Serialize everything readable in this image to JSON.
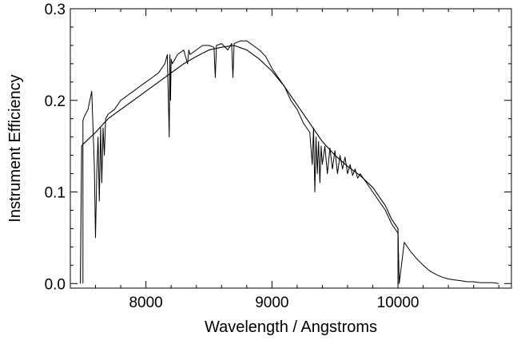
{
  "chart_data": {
    "type": "line",
    "title": "",
    "xlabel": "Wavelength / Angstroms",
    "ylabel": "Instrument Efficiency",
    "xlim": [
      7400,
      10900
    ],
    "ylim": [
      -0.005,
      0.3
    ],
    "grid": false,
    "x_ticks": [
      8000,
      9000,
      10000
    ],
    "x_tick_labels": [
      "8000",
      "9000",
      "10000"
    ],
    "y_ticks": [
      0.0,
      0.1,
      0.2,
      0.3
    ],
    "y_tick_labels": [
      "0.0",
      "0.1",
      "0.2",
      "0.3"
    ],
    "series": [
      {
        "style": "measured",
        "x": [
          7500,
          7500,
          7510,
          7540,
          7570,
          7580,
          7590,
          7600,
          7610,
          7620,
          7630,
          7640,
          7650,
          7660,
          7670,
          7680,
          7700,
          7750,
          7800,
          7850,
          7900,
          7950,
          8000,
          8050,
          8100,
          8150,
          8170,
          8180,
          8185,
          8190,
          8195,
          8200,
          8210,
          8250,
          8300,
          8330,
          8340,
          8350,
          8400,
          8450,
          8500,
          8540,
          8550,
          8560,
          8600,
          8650,
          8680,
          8690,
          8700,
          8750,
          8800,
          8850,
          8900,
          8950,
          9000,
          9050,
          9100,
          9150,
          9200,
          9250,
          9300,
          9320,
          9330,
          9340,
          9350,
          9360,
          9370,
          9380,
          9390,
          9400,
          9420,
          9440,
          9460,
          9480,
          9500,
          9520,
          9540,
          9560,
          9580,
          9600,
          9620,
          9640,
          9660,
          9680,
          9700,
          9750,
          9800,
          9850,
          9900,
          9950,
          10000,
          10010,
          10050,
          10100,
          10150,
          10200,
          10250,
          10300,
          10350,
          10400,
          10450,
          10500,
          10550,
          10600,
          10650,
          10700,
          10750,
          10800
        ],
        "y": [
          0.0,
          0.178,
          0.182,
          0.19,
          0.21,
          0.17,
          0.13,
          0.05,
          0.12,
          0.16,
          0.09,
          0.17,
          0.11,
          0.17,
          0.14,
          0.18,
          0.185,
          0.19,
          0.2,
          0.205,
          0.21,
          0.215,
          0.22,
          0.225,
          0.23,
          0.24,
          0.25,
          0.19,
          0.16,
          0.25,
          0.2,
          0.245,
          0.24,
          0.25,
          0.255,
          0.24,
          0.255,
          0.25,
          0.255,
          0.26,
          0.26,
          0.258,
          0.225,
          0.26,
          0.262,
          0.255,
          0.262,
          0.225,
          0.262,
          0.265,
          0.265,
          0.26,
          0.255,
          0.248,
          0.235,
          0.225,
          0.215,
          0.2,
          0.19,
          0.175,
          0.165,
          0.13,
          0.17,
          0.1,
          0.16,
          0.12,
          0.155,
          0.11,
          0.15,
          0.13,
          0.15,
          0.12,
          0.148,
          0.125,
          0.145,
          0.12,
          0.14,
          0.125,
          0.138,
          0.12,
          0.13,
          0.118,
          0.125,
          0.115,
          0.12,
          0.11,
          0.1,
          0.09,
          0.08,
          0.065,
          0.055,
          0.0,
          0.045,
          0.035,
          0.027,
          0.02,
          0.014,
          0.01,
          0.007,
          0.005,
          0.004,
          0.003,
          0.002,
          0.002,
          0.001,
          0.001,
          0.001,
          0.0
        ]
      },
      {
        "style": "smooth fit",
        "x": [
          7480,
          7490,
          7500,
          7600,
          7700,
          7800,
          7900,
          8000,
          8100,
          8200,
          8300,
          8400,
          8500,
          8600,
          8700,
          8800,
          8900,
          9000,
          9100,
          9200,
          9300,
          9400,
          9500,
          9600,
          9700,
          9800,
          9900,
          9950,
          10000,
          10000
        ],
        "y": [
          0.0,
          0.15,
          0.152,
          0.165,
          0.18,
          0.19,
          0.2,
          0.21,
          0.22,
          0.23,
          0.24,
          0.248,
          0.255,
          0.258,
          0.26,
          0.255,
          0.245,
          0.232,
          0.215,
          0.195,
          0.175,
          0.155,
          0.14,
          0.128,
          0.118,
          0.105,
          0.085,
          0.07,
          0.06,
          0.0
        ]
      }
    ]
  }
}
